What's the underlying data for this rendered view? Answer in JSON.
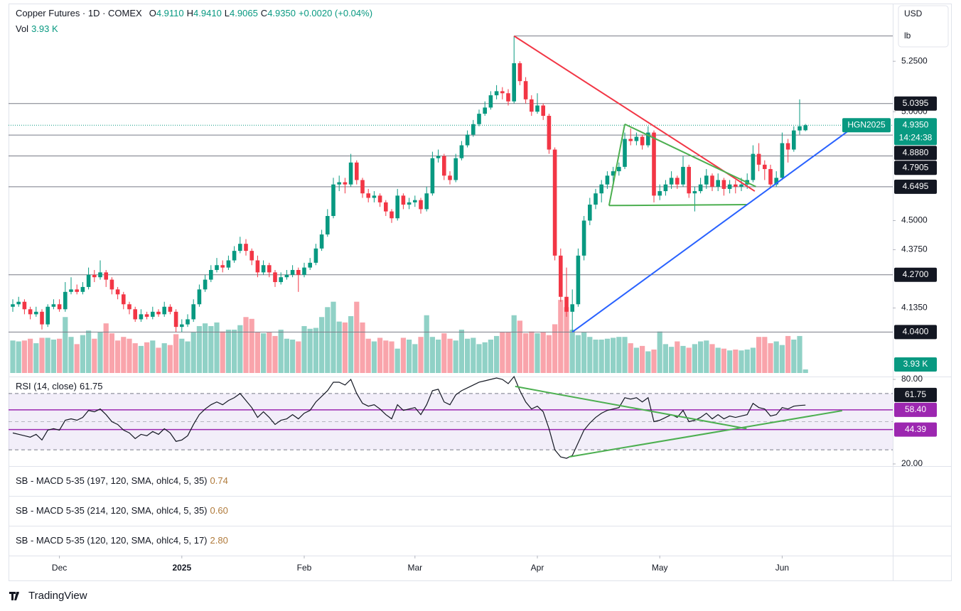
{
  "header": {
    "title": "Copper Futures · 1D · COMEX",
    "legend": [
      {
        "key": "O",
        "text": "4.9110"
      },
      {
        "key": "H",
        "text": "4.9410"
      },
      {
        "key": "L",
        "text": "4.9065"
      },
      {
        "key": "C",
        "text": "4.9350"
      }
    ],
    "change": "+0.0020 (+0.04%)",
    "vol_label": "Vol",
    "vol_text": "3.93 K",
    "currency": "USD",
    "unit": "lb"
  },
  "indicators": [
    {
      "name": "SB - MACD 5-35 (197, 120, SMA, ohlc4, 5, 35)",
      "value": "0.74"
    },
    {
      "name": "SB - MACD 5-35 (214, 120, SMA, ohlc4, 5, 35)",
      "value": "0.60"
    },
    {
      "name": "SB - MACD 5-35 (120, 120, SMA, ohlc4, 5, 17)",
      "value": "2.80"
    }
  ],
  "branding": "TradingView",
  "chart_data": {
    "type": "candlestick",
    "log_scale": true,
    "grid": false,
    "up_color": "#089981",
    "down_color": "#f23645",
    "ylim": [
      3.883,
      5.54
    ],
    "yticks": [
      {
        "value": 5.25,
        "label": "5.2500"
      },
      {
        "value": 5,
        "label": "5.0000"
      },
      {
        "value": 4.5,
        "label": "4.5000"
      },
      {
        "value": 4.375,
        "label": "4.3750"
      },
      {
        "value": 4.135,
        "label": "4.1350"
      }
    ],
    "xticks": [
      {
        "value": 8,
        "label": "Dec"
      },
      {
        "value": 29,
        "label": "2025"
      },
      {
        "value": 50,
        "label": "Feb"
      },
      {
        "value": 69,
        "label": "Mar"
      },
      {
        "value": 90,
        "label": "Apr"
      },
      {
        "value": 111,
        "label": "May"
      },
      {
        "value": 132,
        "label": "Jun"
      }
    ],
    "candles": [
      [
        4.14,
        4.17,
        4.12,
        4.15
      ],
      [
        4.15,
        4.18,
        4.14,
        4.16
      ],
      [
        4.16,
        4.17,
        4.11,
        4.13
      ],
      [
        4.13,
        4.14,
        4.09,
        4.11
      ],
      [
        4.11,
        4.14,
        4.1,
        4.12
      ],
      [
        4.12,
        4.13,
        4.05,
        4.07
      ],
      [
        4.07,
        4.15,
        4.06,
        4.14
      ],
      [
        4.14,
        4.17,
        4.13,
        4.15
      ],
      [
        4.15,
        4.17,
        4.12,
        4.13
      ],
      [
        4.13,
        4.24,
        4.12,
        4.2
      ],
      [
        4.2,
        4.26,
        4.19,
        4.21
      ],
      [
        4.21,
        4.23,
        4.19,
        4.2
      ],
      [
        4.2,
        4.24,
        4.19,
        4.22
      ],
      [
        4.22,
        4.3,
        4.21,
        4.27
      ],
      [
        4.27,
        4.29,
        4.24,
        4.26
      ],
      [
        4.26,
        4.33,
        4.25,
        4.28
      ],
      [
        4.28,
        4.29,
        4.22,
        4.25
      ],
      [
        4.25,
        4.26,
        4.19,
        4.21
      ],
      [
        4.21,
        4.22,
        4.17,
        4.19
      ],
      [
        4.19,
        4.2,
        4.13,
        4.15
      ],
      [
        4.15,
        4.16,
        4.11,
        4.13
      ],
      [
        4.13,
        4.14,
        4.08,
        4.09
      ],
      [
        4.09,
        4.13,
        4.08,
        4.11
      ],
      [
        4.11,
        4.12,
        4.09,
        4.1
      ],
      [
        4.1,
        4.14,
        4.09,
        4.12
      ],
      [
        4.12,
        4.13,
        4.1,
        4.11
      ],
      [
        4.11,
        4.16,
        4.1,
        4.14
      ],
      [
        4.14,
        4.15,
        4.11,
        4.12
      ],
      [
        4.12,
        4.13,
        4.04,
        4.06
      ],
      [
        4.06,
        4.09,
        4.04,
        4.07
      ],
      [
        4.07,
        4.11,
        4.06,
        4.09
      ],
      [
        4.09,
        4.17,
        4.08,
        4.15
      ],
      [
        4.15,
        4.23,
        4.14,
        4.21
      ],
      [
        4.21,
        4.27,
        4.2,
        4.25
      ],
      [
        4.25,
        4.31,
        4.24,
        4.29
      ],
      [
        4.29,
        4.34,
        4.28,
        4.31
      ],
      [
        4.31,
        4.33,
        4.28,
        4.3
      ],
      [
        4.3,
        4.35,
        4.29,
        4.33
      ],
      [
        4.33,
        4.39,
        4.32,
        4.37
      ],
      [
        4.37,
        4.43,
        4.36,
        4.4
      ],
      [
        4.4,
        4.42,
        4.35,
        4.37
      ],
      [
        4.37,
        4.38,
        4.31,
        4.33
      ],
      [
        4.33,
        4.35,
        4.26,
        4.28
      ],
      [
        4.28,
        4.33,
        4.27,
        4.31
      ],
      [
        4.31,
        4.32,
        4.26,
        4.28
      ],
      [
        4.28,
        4.29,
        4.22,
        4.24
      ],
      [
        4.24,
        4.28,
        4.23,
        4.26
      ],
      [
        4.26,
        4.29,
        4.25,
        4.27
      ],
      [
        4.27,
        4.31,
        4.26,
        4.29
      ],
      [
        4.29,
        4.3,
        4.2,
        4.27
      ],
      [
        4.27,
        4.32,
        4.26,
        4.3
      ],
      [
        4.3,
        4.34,
        4.29,
        4.32
      ],
      [
        4.32,
        4.4,
        4.31,
        4.38
      ],
      [
        4.38,
        4.46,
        4.37,
        4.44
      ],
      [
        4.44,
        4.55,
        4.43,
        4.52
      ],
      [
        4.52,
        4.69,
        4.51,
        4.66
      ],
      [
        4.66,
        4.7,
        4.63,
        4.67
      ],
      [
        4.67,
        4.69,
        4.62,
        4.66
      ],
      [
        4.66,
        4.8,
        4.65,
        4.76
      ],
      [
        4.76,
        4.77,
        4.66,
        4.68
      ],
      [
        4.68,
        4.69,
        4.6,
        4.62
      ],
      [
        4.62,
        4.64,
        4.58,
        4.6
      ],
      [
        4.6,
        4.63,
        4.58,
        4.61
      ],
      [
        4.61,
        4.62,
        4.56,
        4.58
      ],
      [
        4.58,
        4.59,
        4.52,
        4.54
      ],
      [
        4.54,
        4.55,
        4.49,
        4.51
      ],
      [
        4.51,
        4.64,
        4.5,
        4.61
      ],
      [
        4.61,
        4.62,
        4.55,
        4.57
      ],
      [
        4.57,
        4.6,
        4.55,
        4.58
      ],
      [
        4.58,
        4.61,
        4.56,
        4.59
      ],
      [
        4.59,
        4.6,
        4.53,
        4.55
      ],
      [
        4.55,
        4.65,
        4.54,
        4.62
      ],
      [
        4.62,
        4.81,
        4.61,
        4.78
      ],
      [
        4.78,
        4.82,
        4.76,
        4.79
      ],
      [
        4.79,
        4.8,
        4.68,
        4.7
      ],
      [
        4.7,
        4.72,
        4.66,
        4.68
      ],
      [
        4.68,
        4.8,
        4.67,
        4.78
      ],
      [
        4.78,
        4.86,
        4.77,
        4.84
      ],
      [
        4.84,
        4.91,
        4.83,
        4.89
      ],
      [
        4.89,
        4.96,
        4.88,
        4.94
      ],
      [
        4.94,
        5.01,
        4.93,
        4.99
      ],
      [
        4.99,
        5.05,
        4.98,
        5.02
      ],
      [
        5.02,
        5.1,
        5.01,
        5.08
      ],
      [
        5.08,
        5.13,
        5.06,
        5.1
      ],
      [
        5.1,
        5.12,
        5.06,
        5.09
      ],
      [
        5.09,
        5.11,
        5.03,
        5.05
      ],
      [
        5.05,
        5.38,
        5.04,
        5.24
      ],
      [
        5.24,
        5.25,
        5.13,
        5.15
      ],
      [
        5.15,
        5.17,
        5.04,
        5.06
      ],
      [
        5.06,
        5.08,
        4.98,
        5.0
      ],
      [
        5.0,
        5.09,
        4.99,
        5.03
      ],
      [
        5.03,
        5.04,
        4.96,
        4.98
      ],
      [
        4.98,
        4.99,
        4.8,
        4.82
      ],
      [
        4.82,
        4.83,
        4.33,
        4.35
      ],
      [
        4.35,
        4.38,
        4.16,
        4.18
      ],
      [
        4.18,
        4.3,
        4.1,
        4.12
      ],
      [
        4.12,
        4.21,
        4.04,
        4.15
      ],
      [
        4.15,
        4.38,
        4.14,
        4.35
      ],
      [
        4.35,
        4.52,
        4.33,
        4.5
      ],
      [
        4.5,
        4.6,
        4.48,
        4.57
      ],
      [
        4.57,
        4.64,
        4.55,
        4.62
      ],
      [
        4.62,
        4.68,
        4.58,
        4.66
      ],
      [
        4.66,
        4.72,
        4.64,
        4.7
      ],
      [
        4.7,
        4.74,
        4.67,
        4.72
      ],
      [
        4.72,
        4.76,
        4.7,
        4.74
      ],
      [
        4.74,
        4.9,
        4.73,
        4.87
      ],
      [
        4.87,
        4.92,
        4.84,
        4.86
      ],
      [
        4.86,
        4.9,
        4.84,
        4.88
      ],
      [
        4.88,
        4.89,
        4.82,
        4.84
      ],
      [
        4.84,
        4.93,
        4.83,
        4.9
      ],
      [
        4.9,
        4.91,
        4.58,
        4.61
      ],
      [
        4.61,
        4.66,
        4.59,
        4.63
      ],
      [
        4.63,
        4.68,
        4.61,
        4.66
      ],
      [
        4.66,
        4.72,
        4.64,
        4.69
      ],
      [
        4.69,
        4.7,
        4.64,
        4.66
      ],
      [
        4.66,
        4.79,
        4.65,
        4.74
      ],
      [
        4.74,
        4.75,
        4.6,
        4.62
      ],
      [
        4.62,
        4.65,
        4.54,
        4.63
      ],
      [
        4.63,
        4.69,
        4.62,
        4.66
      ],
      [
        4.66,
        4.73,
        4.64,
        4.7
      ],
      [
        4.7,
        4.71,
        4.63,
        4.65
      ],
      [
        4.65,
        4.71,
        4.63,
        4.68
      ],
      [
        4.68,
        4.69,
        4.61,
        4.64
      ],
      [
        4.64,
        4.68,
        4.62,
        4.66
      ],
      [
        4.66,
        4.68,
        4.62,
        4.65
      ],
      [
        4.65,
        4.69,
        4.63,
        4.66
      ],
      [
        4.66,
        4.71,
        4.64,
        4.68
      ],
      [
        4.68,
        4.84,
        4.67,
        4.8
      ],
      [
        4.8,
        4.85,
        4.72,
        4.75
      ],
      [
        4.75,
        4.77,
        4.68,
        4.73
      ],
      [
        4.73,
        4.75,
        4.65,
        4.66
      ],
      [
        4.66,
        4.72,
        4.65,
        4.69
      ],
      [
        4.69,
        4.9,
        4.68,
        4.85
      ],
      [
        4.85,
        4.87,
        4.76,
        4.82
      ],
      [
        4.82,
        4.93,
        4.81,
        4.91
      ],
      [
        4.91,
        5.06,
        4.89,
        4.93
      ],
      [
        4.911,
        4.941,
        4.9065,
        4.935
      ]
    ],
    "volume": {
      "lim": [
        0,
        100
      ],
      "last_label": "3.93 K",
      "values": [
        36,
        35,
        36,
        38,
        33,
        39,
        39,
        37,
        38,
        62,
        40,
        32,
        42,
        47,
        38,
        45,
        55,
        44,
        36,
        40,
        38,
        33,
        30,
        34,
        36,
        28,
        33,
        31,
        43,
        38,
        35,
        45,
        52,
        55,
        52,
        56,
        46,
        48,
        48,
        53,
        62,
        60,
        45,
        44,
        45,
        41,
        48,
        38,
        37,
        35,
        52,
        49,
        50,
        62,
        73,
        79,
        57,
        56,
        63,
        79,
        56,
        38,
        35,
        39,
        36,
        35,
        27,
        39,
        37,
        32,
        40,
        64,
        40,
        37,
        44,
        38,
        36,
        48,
        38,
        39,
        32,
        34,
        37,
        41,
        45,
        45,
        64,
        58,
        44,
        46,
        44,
        45,
        42,
        54,
        81,
        73,
        48,
        42,
        45,
        40,
        37,
        37,
        38,
        39,
        40,
        40,
        33,
        28,
        30,
        24,
        26,
        46,
        32,
        29,
        35,
        30,
        28,
        32,
        35,
        36,
        32,
        28,
        27,
        25,
        26,
        25,
        26,
        28,
        40,
        40,
        33,
        35,
        31,
        41,
        37,
        41,
        3.93
      ]
    },
    "levels": [
      5.0395,
      {
        "value": 4.888,
        "label": "4.8880"
      },
      4.7905,
      4.6495,
      {
        "value": 4.27,
        "label": "4.2700"
      },
      {
        "value": 4.04,
        "label": "4.0400"
      }
    ],
    "high_level": {
      "value": 5.38,
      "from": 86
    },
    "last_price": {
      "value": 4.935,
      "label": "4.9350"
    },
    "symbol": "HGN2025",
    "countdown": "14:24:38",
    "drawings": [
      {
        "color": "#f23645",
        "points": [
          [
            86,
            5.38
          ],
          [
            127.3,
            4.63
          ]
        ]
      },
      {
        "color": "#4caf50",
        "points": [
          [
            105,
            4.94
          ],
          [
            127.5,
            4.65
          ]
        ]
      },
      {
        "color": "#4caf50",
        "points": [
          [
            102.3,
            4.566
          ],
          [
            126,
            4.57
          ]
        ]
      },
      {
        "color": "#4caf50",
        "points": [
          [
            105,
            4.94
          ],
          [
            102.3,
            4.566
          ]
        ]
      },
      {
        "color": "#2962ff",
        "points": [
          [
            96,
            4.04
          ],
          [
            143.3,
            4.907
          ]
        ]
      }
    ],
    "rsi": {
      "title": "RSI (14, close)",
      "ylim": [
        20,
        80
      ],
      "yticks": [
        {
          "value": 80,
          "label": "80.00"
        },
        {
          "value": 20,
          "label": "20.00"
        }
      ],
      "band": [
        30,
        70
      ],
      "mid": 50,
      "color": "#131722",
      "levels": [
        {
          "value": 58.4,
          "label": "58.40"
        },
        44.39
      ],
      "level_color": "#9c27b0",
      "values": [
        42,
        41,
        40,
        39,
        41,
        37,
        44,
        45,
        44,
        51,
        52,
        51,
        53,
        58,
        57,
        59,
        55,
        50,
        48,
        44,
        42,
        38,
        41,
        40,
        43,
        41,
        45,
        42,
        36,
        37,
        40,
        48,
        55,
        59,
        62,
        64,
        62,
        65,
        67,
        70,
        65,
        60,
        53,
        57,
        53,
        48,
        51,
        52,
        55,
        52,
        56,
        58,
        64,
        68,
        72,
        78,
        78,
        76,
        80,
        70,
        63,
        61,
        62,
        59,
        55,
        52,
        62,
        58,
        59,
        60,
        55,
        62,
        72,
        73,
        64,
        62,
        69,
        72,
        74,
        76,
        78,
        79,
        80,
        81,
        80,
        77,
        82,
        72,
        64,
        59,
        61,
        57,
        45,
        30,
        25,
        24,
        26,
        35,
        44,
        49,
        53,
        56,
        58,
        59,
        60,
        67,
        66,
        67,
        64,
        67,
        50,
        51,
        53,
        55,
        53,
        58,
        50,
        51,
        53,
        56,
        52,
        55,
        52,
        54,
        53,
        54,
        55,
        63,
        60,
        59,
        54,
        55,
        60,
        59,
        61,
        61.5,
        61.75
      ],
      "drawings": [
        {
          "color": "#4caf50",
          "points": [
            [
              86.2,
              75
            ],
            [
              125.9,
              45
            ]
          ]
        },
        {
          "color": "#4caf50",
          "points": [
            [
              95.4,
              25
            ],
            [
              142.3,
              57.8
            ]
          ]
        }
      ]
    }
  }
}
